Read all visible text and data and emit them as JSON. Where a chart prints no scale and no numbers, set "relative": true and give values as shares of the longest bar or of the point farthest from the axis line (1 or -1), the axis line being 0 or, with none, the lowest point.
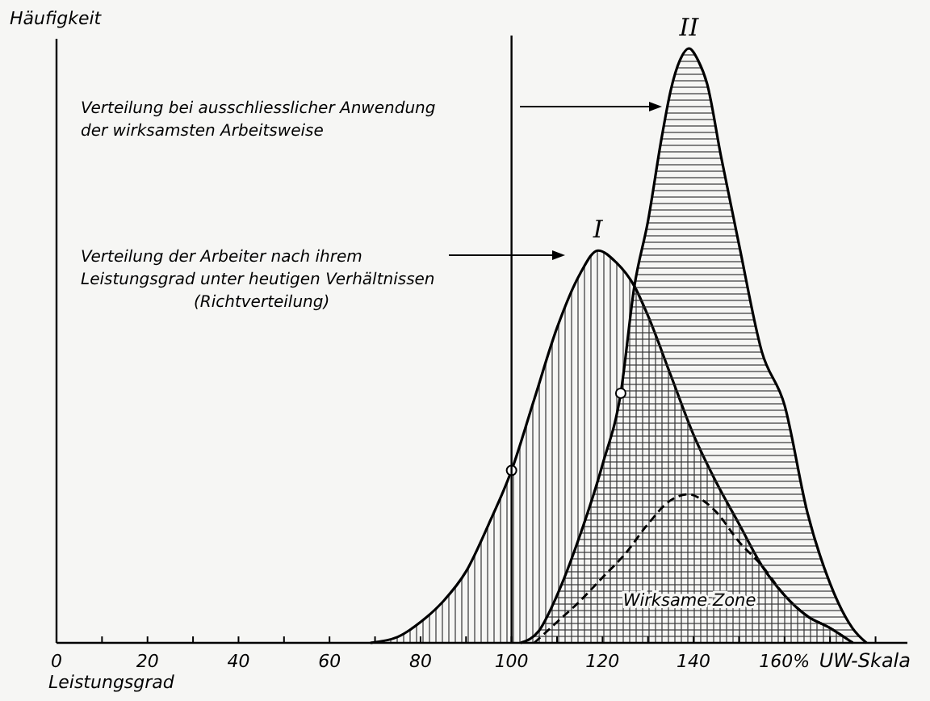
{
  "chart_data": {
    "type": "area",
    "relative": true,
    "xlabel": "Leistungsgrad",
    "ylabel": "Häufigkeit",
    "xlim": [
      0,
      187
    ],
    "xticks": [
      0,
      {
        "value": 10,
        "label": null
      },
      20,
      {
        "value": 30,
        "label": null
      },
      40,
      {
        "value": 50,
        "label": null
      },
      60,
      {
        "value": 70,
        "label": null
      },
      80,
      {
        "value": 90,
        "label": null
      },
      100,
      {
        "value": 110,
        "label": null
      },
      120,
      {
        "value": 130,
        "label": null
      },
      140,
      {
        "value": 150,
        "label": null
      },
      {
        "value": 160,
        "label": "160%"
      },
      {
        "value": 170,
        "label": null
      },
      {
        "value": 180,
        "label": null
      }
    ],
    "series": [
      {
        "name": "I",
        "color": "#000000",
        "x": [
          69,
          75,
          80,
          85,
          90,
          95,
          100,
          105,
          110,
          115,
          119,
          123,
          127,
          130,
          135,
          140,
          145,
          150,
          155,
          160,
          165,
          170,
          175
        ],
        "values": [
          0,
          0.01,
          0.035,
          0.07,
          0.12,
          0.2,
          0.29,
          0.41,
          0.53,
          0.62,
          0.66,
          0.64,
          0.6,
          0.55,
          0.45,
          0.35,
          0.27,
          0.2,
          0.13,
          0.08,
          0.045,
          0.025,
          0
        ]
      },
      {
        "name": "II",
        "color": "#000000",
        "x": [
          102,
          106,
          110,
          115,
          120,
          124,
          127,
          130,
          133,
          135,
          137,
          139,
          141,
          143,
          146,
          150,
          155,
          160,
          165,
          170,
          175,
          178
        ],
        "values": [
          0,
          0.02,
          0.08,
          0.18,
          0.3,
          0.42,
          0.6,
          0.71,
          0.85,
          0.93,
          0.98,
          1,
          0.98,
          0.94,
          0.82,
          0.67,
          0.49,
          0.4,
          0.22,
          0.1,
          0.024,
          0
        ]
      },
      {
        "type": "line",
        "line_style": "dashed",
        "color": "#000000",
        "x": [
          105,
          110,
          115,
          120,
          125,
          130,
          135,
          139,
          142,
          145,
          150,
          155,
          160,
          165,
          170,
          175
        ],
        "values": [
          0,
          0.035,
          0.07,
          0.11,
          0.15,
          0.2,
          0.24,
          0.25,
          0.24,
          0.22,
          0.17,
          0.13,
          0.08,
          0.045,
          0.025,
          0
        ]
      },
      {
        "type": "scatter",
        "marker": "circle",
        "color": "#000000",
        "x": [
          100,
          124
        ],
        "values": [
          0.29,
          0.42
        ]
      }
    ],
    "ref_lines": [
      {
        "axis": "x",
        "value": 100,
        "label": null
      }
    ],
    "annotations": [
      "Verteilung bei ausschliesslicher Anwendung\nder wirksamsten Arbeitsweise",
      "Verteilung der Arbeiter nach ihrem\nLeistungsgrad unter heutigen Verhältnissen\n(Richtverteilung)",
      "Wirksame Zone",
      "UW-Skala"
    ]
  }
}
